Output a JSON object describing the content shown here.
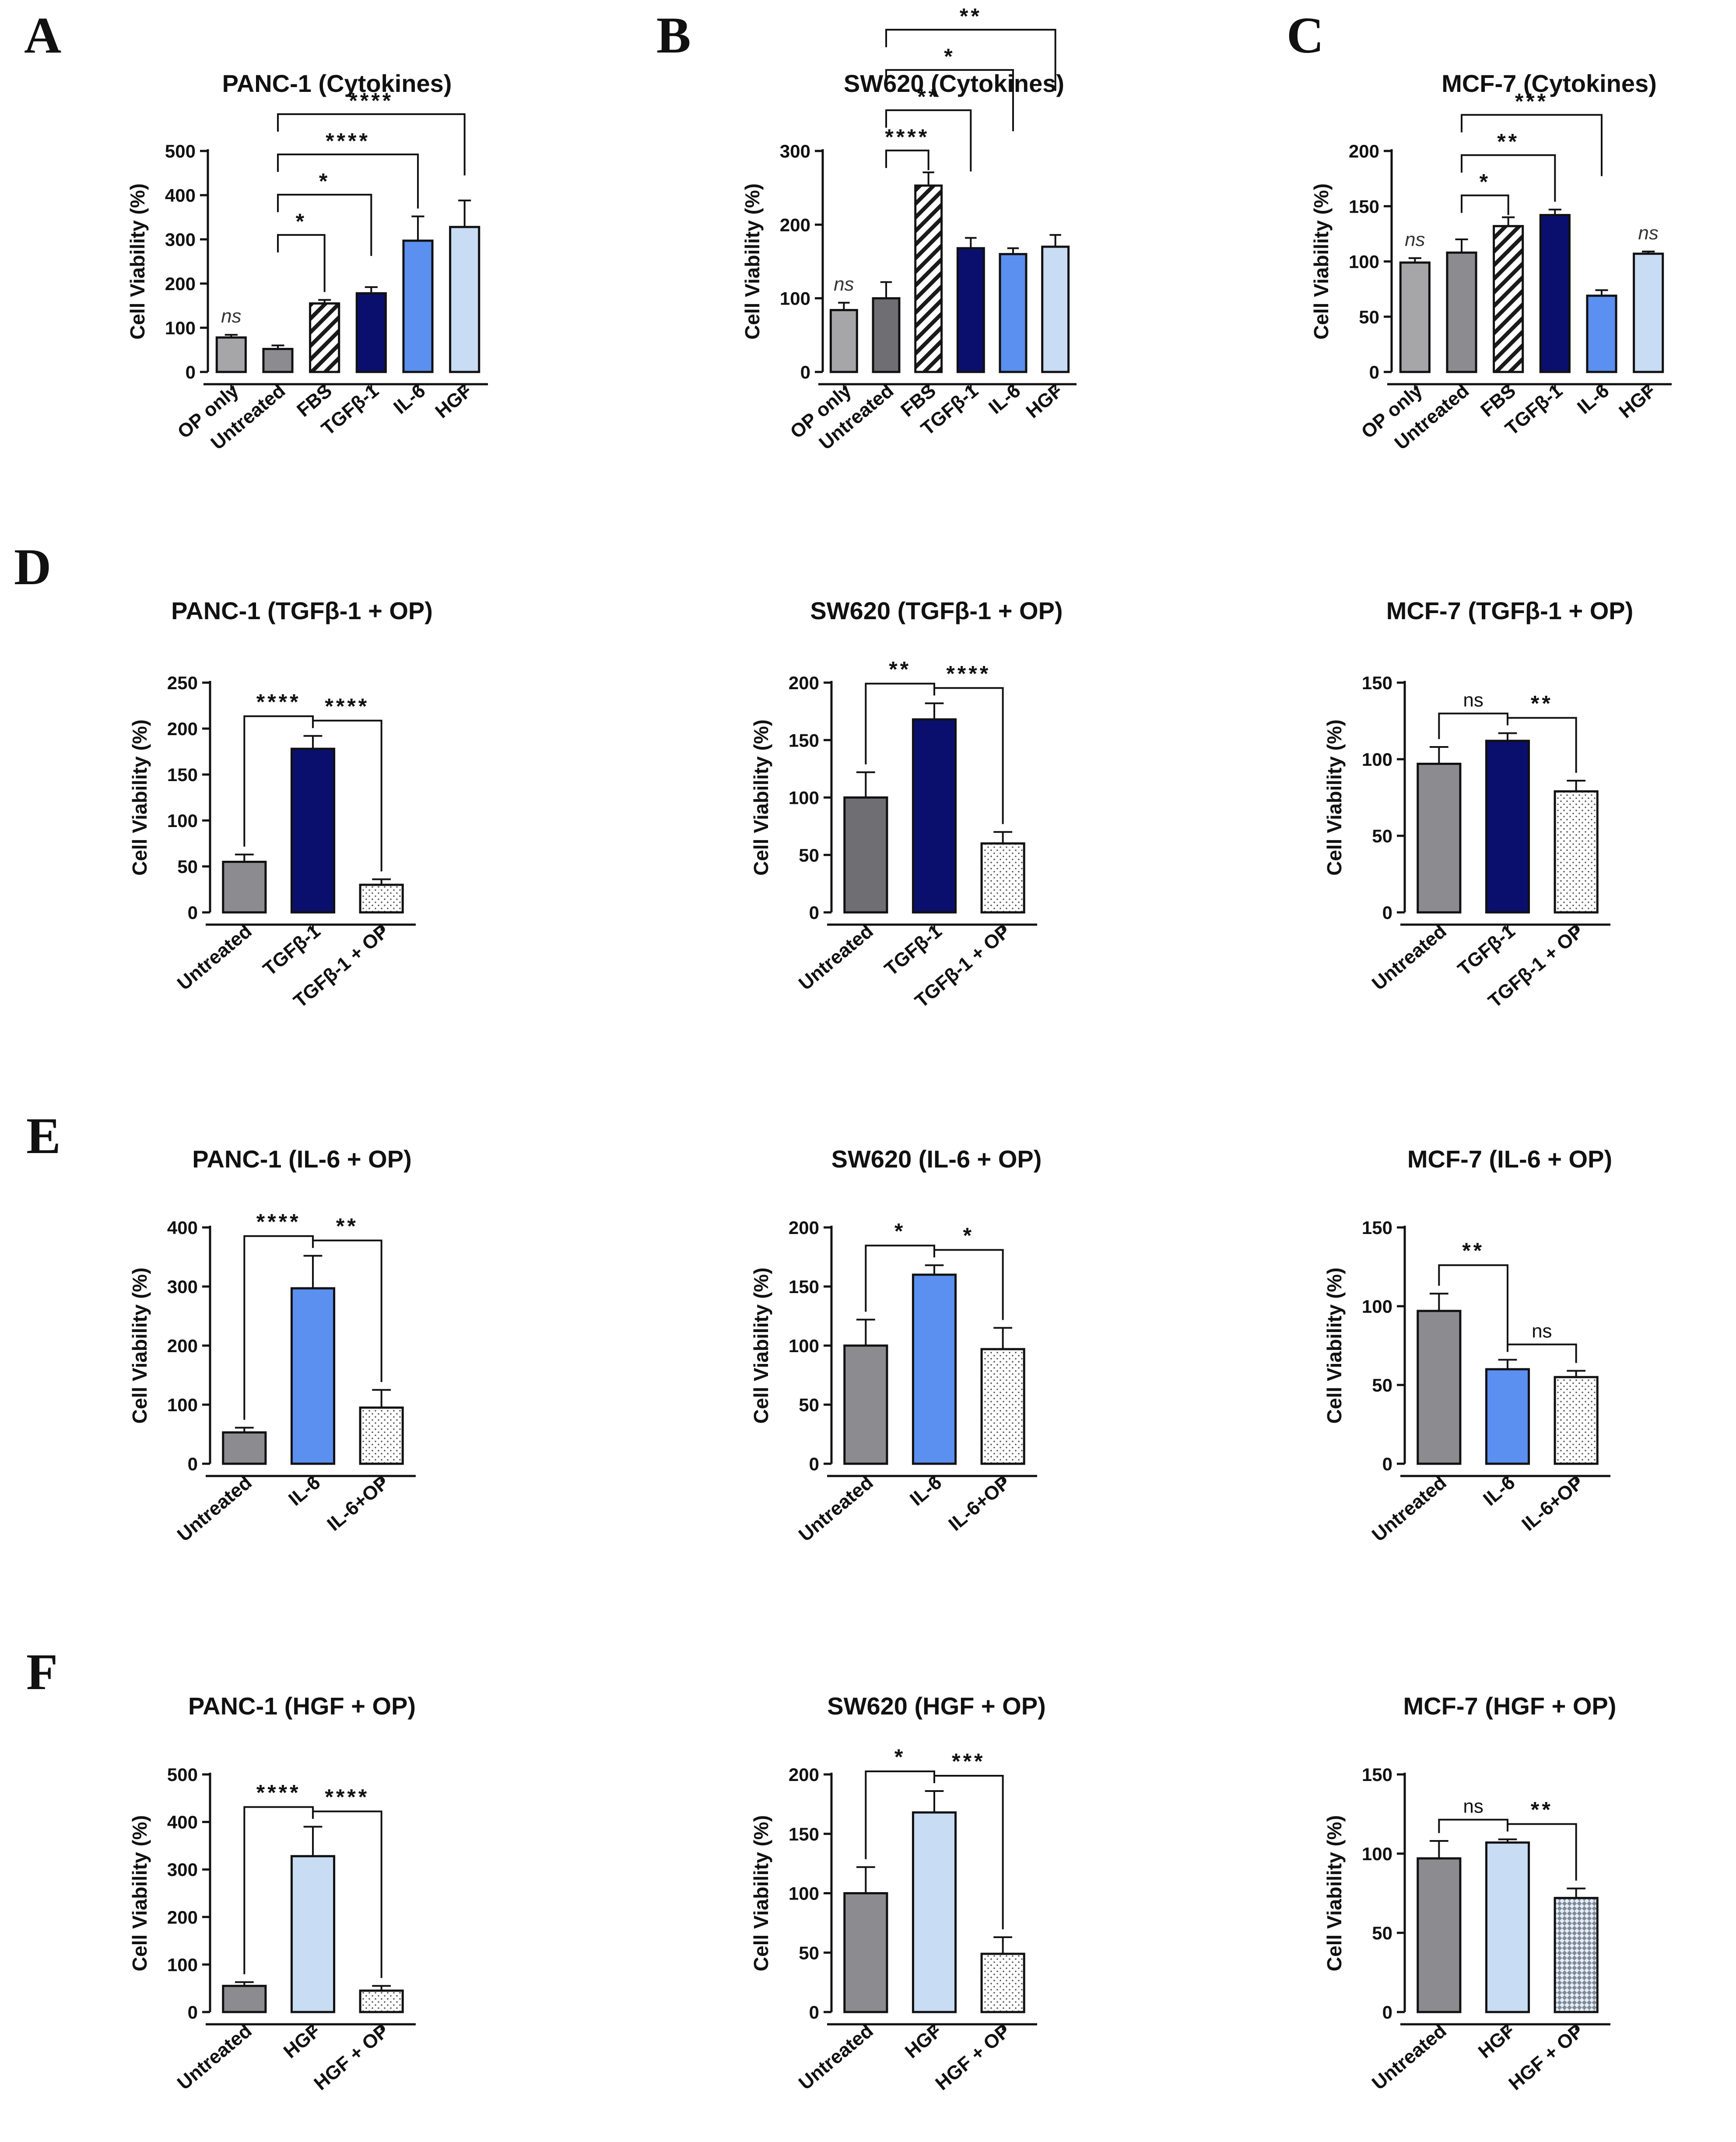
{
  "colors": {
    "light_gray": "#a6a6a9",
    "gray": "#8c8c90",
    "dark_gray": "#6f6f73",
    "navy": "#0a0f6e",
    "blue": "#5b8ff0",
    "light_blue": "#c8dcf4",
    "white": "#ffffff"
  },
  "chart_data": [
    {
      "panel": "A",
      "type": "bar",
      "title": "PANC-1 (Cytokines)",
      "ylabel": "Cell Viability (%)",
      "ylim": [
        0,
        500
      ],
      "yticks": [
        0,
        100,
        200,
        300,
        400,
        500
      ],
      "categories": [
        "OP only",
        "Untreated",
        "FBS",
        "TGFβ-1",
        "IL-6",
        "HGF"
      ],
      "values": [
        78,
        52,
        155,
        178,
        297,
        328
      ],
      "errors": [
        6,
        8,
        8,
        14,
        55,
        60
      ],
      "fills": [
        "light_gray",
        "gray",
        "hatch",
        "navy",
        "blue",
        "light_blue"
      ],
      "annotations": [
        {
          "type": "label",
          "bar": 0,
          "text": "ns",
          "style": "italic"
        },
        {
          "type": "bracket",
          "from": 1,
          "to": 2,
          "text": "*"
        },
        {
          "type": "bracket",
          "from": 1,
          "to": 3,
          "text": "*"
        },
        {
          "type": "bracket",
          "from": 1,
          "to": 4,
          "text": "****"
        },
        {
          "type": "bracket",
          "from": 1,
          "to": 5,
          "text": "****"
        }
      ]
    },
    {
      "panel": "B",
      "type": "bar",
      "title": "SW620 (Cytokines)",
      "ylabel": "Cell Viability (%)",
      "ylim": [
        0,
        300
      ],
      "yticks": [
        0,
        100,
        200,
        300
      ],
      "categories": [
        "OP only",
        "Untreated",
        "FBS",
        "TGFβ-1",
        "IL-6",
        "HGF"
      ],
      "values": [
        84,
        100,
        253,
        168,
        160,
        170
      ],
      "errors": [
        10,
        22,
        18,
        14,
        8,
        16
      ],
      "fills": [
        "light_gray",
        "dark_gray",
        "hatch",
        "navy",
        "blue",
        "light_blue"
      ],
      "annotations": [
        {
          "type": "label",
          "bar": 0,
          "text": "ns",
          "style": "italic"
        },
        {
          "type": "bracket",
          "from": 1,
          "to": 2,
          "text": "****"
        },
        {
          "type": "bracket",
          "from": 1,
          "to": 3,
          "text": "**"
        },
        {
          "type": "bracket",
          "from": 1,
          "to": 4,
          "text": "*"
        },
        {
          "type": "bracket",
          "from": 1,
          "to": 5,
          "text": "**"
        }
      ]
    },
    {
      "panel": "C",
      "type": "bar",
      "title": "MCF-7 (Cytokines)",
      "ylabel": "Cell Viability (%)",
      "ylim": [
        0,
        200
      ],
      "yticks": [
        0,
        50,
        100,
        150,
        200
      ],
      "categories": [
        "OP only",
        "Untreated",
        "FBS",
        "TGFβ-1",
        "IL-6",
        "HGF"
      ],
      "values": [
        99,
        108,
        132,
        142,
        69,
        107
      ],
      "errors": [
        4,
        12,
        8,
        5,
        5,
        2
      ],
      "fills": [
        "light_gray",
        "gray",
        "hatch",
        "navy",
        "blue",
        "light_blue"
      ],
      "annotations": [
        {
          "type": "label",
          "bar": 0,
          "text": "ns",
          "style": "italic"
        },
        {
          "type": "label",
          "bar": 5,
          "text": "ns",
          "style": "italic"
        },
        {
          "type": "bracket",
          "from": 1,
          "to": 2,
          "text": "*"
        },
        {
          "type": "bracket",
          "from": 1,
          "to": 3,
          "text": "**"
        },
        {
          "type": "bracket",
          "from": 1,
          "to": 4,
          "text": "***"
        }
      ]
    },
    {
      "panel": "D",
      "type": "bar",
      "title": "PANC-1 (TGFβ-1 + OP)",
      "ylabel": "Cell Viability (%)",
      "ylim": [
        0,
        250
      ],
      "yticks": [
        0,
        50,
        100,
        150,
        200,
        250
      ],
      "categories": [
        "Untreated",
        "TGFβ-1",
        "TGFβ-1 + OP"
      ],
      "values": [
        55,
        178,
        30
      ],
      "errors": [
        8,
        14,
        6
      ],
      "fills": [
        "gray",
        "navy",
        "dots"
      ],
      "annotations": [
        {
          "type": "bracket",
          "from": 0,
          "to": 1,
          "text": "****"
        },
        {
          "type": "bracket",
          "from": 1,
          "to": 2,
          "text": "****"
        }
      ]
    },
    {
      "panel": "",
      "type": "bar",
      "title": "SW620 (TGFβ-1 + OP)",
      "ylabel": "Cell Viability (%)",
      "ylim": [
        0,
        200
      ],
      "yticks": [
        0,
        50,
        100,
        150,
        200
      ],
      "categories": [
        "Untreated",
        "TGFβ-1",
        "TGFβ-1 + OP"
      ],
      "values": [
        100,
        168,
        60
      ],
      "errors": [
        22,
        14,
        10
      ],
      "fills": [
        "dark_gray",
        "navy",
        "dots"
      ],
      "annotations": [
        {
          "type": "bracket",
          "from": 0,
          "to": 1,
          "text": "**"
        },
        {
          "type": "bracket",
          "from": 1,
          "to": 2,
          "text": "****"
        }
      ]
    },
    {
      "panel": "",
      "type": "bar",
      "title": "MCF-7 (TGFβ-1 + OP)",
      "ylabel": "Cell Viability (%)",
      "ylim": [
        0,
        150
      ],
      "yticks": [
        0,
        50,
        100,
        150
      ],
      "categories": [
        "Untreated",
        "TGFβ-1",
        "TGFβ-1 + OP"
      ],
      "values": [
        97,
        112,
        79
      ],
      "errors": [
        11,
        5,
        7
      ],
      "fills": [
        "gray",
        "navy",
        "dots"
      ],
      "annotations": [
        {
          "type": "bracket",
          "from": 0,
          "to": 1,
          "text": "ns"
        },
        {
          "type": "bracket",
          "from": 1,
          "to": 2,
          "text": "**"
        }
      ]
    },
    {
      "panel": "E",
      "type": "bar",
      "title": "PANC-1 (IL-6 + OP)",
      "ylabel": "Cell Viability (%)",
      "ylim": [
        0,
        400
      ],
      "yticks": [
        0,
        100,
        200,
        300,
        400
      ],
      "categories": [
        "Untreated",
        "IL-6",
        "IL-6+OP"
      ],
      "values": [
        53,
        297,
        95
      ],
      "errors": [
        8,
        55,
        30
      ],
      "fills": [
        "gray",
        "blue",
        "dots"
      ],
      "annotations": [
        {
          "type": "bracket",
          "from": 0,
          "to": 1,
          "text": "****"
        },
        {
          "type": "bracket",
          "from": 1,
          "to": 2,
          "text": "**"
        }
      ]
    },
    {
      "panel": "",
      "type": "bar",
      "title": "SW620 (IL-6 + OP)",
      "ylabel": "Cell Viability (%)",
      "ylim": [
        0,
        200
      ],
      "yticks": [
        0,
        50,
        100,
        150,
        200
      ],
      "categories": [
        "Untreated",
        "IL-6",
        "IL-6+OP"
      ],
      "values": [
        100,
        160,
        97
      ],
      "errors": [
        22,
        8,
        18
      ],
      "fills": [
        "gray",
        "blue",
        "dots"
      ],
      "annotations": [
        {
          "type": "bracket",
          "from": 0,
          "to": 1,
          "text": "*"
        },
        {
          "type": "bracket",
          "from": 1,
          "to": 2,
          "text": "*"
        }
      ]
    },
    {
      "panel": "",
      "type": "bar",
      "title": "MCF-7 (IL-6 + OP)",
      "ylabel": "Cell Viability (%)",
      "ylim": [
        0,
        150
      ],
      "yticks": [
        0,
        50,
        100,
        150
      ],
      "categories": [
        "Untreated",
        "IL-6",
        "IL-6+OP"
      ],
      "values": [
        97,
        60,
        55
      ],
      "errors": [
        11,
        6,
        4
      ],
      "fills": [
        "gray",
        "blue",
        "dots"
      ],
      "annotations": [
        {
          "type": "bracket",
          "from": 0,
          "to": 1,
          "text": "**"
        },
        {
          "type": "bracket",
          "from": 1,
          "to": 2,
          "text": "ns"
        }
      ]
    },
    {
      "panel": "F",
      "type": "bar",
      "title": "PANC-1 (HGF + OP)",
      "ylabel": "Cell Viability (%)",
      "ylim": [
        0,
        500
      ],
      "yticks": [
        0,
        100,
        200,
        300,
        400,
        500
      ],
      "categories": [
        "Untreated",
        "HGF",
        "HGF + OP"
      ],
      "values": [
        55,
        328,
        45
      ],
      "errors": [
        8,
        62,
        10
      ],
      "fills": [
        "gray",
        "light_blue",
        "dots"
      ],
      "annotations": [
        {
          "type": "bracket",
          "from": 0,
          "to": 1,
          "text": "****"
        },
        {
          "type": "bracket",
          "from": 1,
          "to": 2,
          "text": "****"
        }
      ]
    },
    {
      "panel": "",
      "type": "bar",
      "title": "SW620 (HGF + OP)",
      "ylabel": "Cell Viability (%)",
      "ylim": [
        0,
        200
      ],
      "yticks": [
        0,
        50,
        100,
        150,
        200
      ],
      "categories": [
        "Untreated",
        "HGF",
        "HGF + OP"
      ],
      "values": [
        100,
        168,
        49
      ],
      "errors": [
        22,
        18,
        14
      ],
      "fills": [
        "gray",
        "light_blue",
        "dots"
      ],
      "annotations": [
        {
          "type": "bracket",
          "from": 0,
          "to": 1,
          "text": "*"
        },
        {
          "type": "bracket",
          "from": 1,
          "to": 2,
          "text": "***"
        }
      ]
    },
    {
      "panel": "",
      "type": "bar",
      "title": "MCF-7 (HGF + OP)",
      "ylabel": "Cell Viability (%)",
      "ylim": [
        0,
        150
      ],
      "yticks": [
        0,
        50,
        100,
        150
      ],
      "categories": [
        "Untreated",
        "HGF",
        "HGF + OP"
      ],
      "values": [
        97,
        107,
        72
      ],
      "errors": [
        11,
        2,
        6
      ],
      "fills": [
        "gray",
        "light_blue",
        "checker"
      ],
      "annotations": [
        {
          "type": "bracket",
          "from": 0,
          "to": 1,
          "text": "ns"
        },
        {
          "type": "bracket",
          "from": 1,
          "to": 2,
          "text": "**"
        }
      ]
    }
  ]
}
